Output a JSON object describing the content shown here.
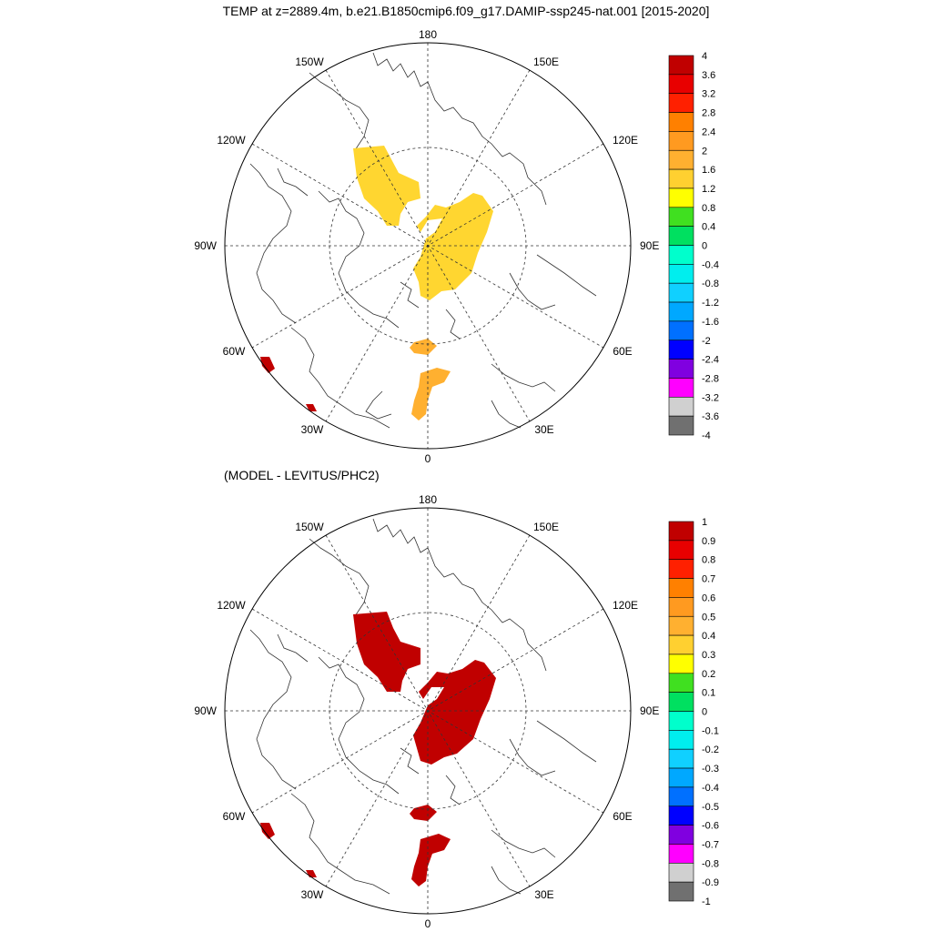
{
  "title": "TEMP at z=2889.4m, b.e21.B1850cmip6.f09_g17.DAMIP-ssp245-nat.001 [2015-2020]",
  "subtitle": "(MODEL - LEVITUS/PHC2)",
  "longitude_labels": {
    "top": "180",
    "bottom": "0",
    "left": "90W",
    "right": "90E",
    "lon150w": "150W",
    "lon150e": "150E",
    "lon120w": "120W",
    "lon120e": "120E",
    "lon60w": "60W",
    "lon60e": "60E",
    "lon30w": "30W",
    "lon30e": "30E"
  },
  "map_top": {
    "colorbar_labels": [
      "4",
      "3.6",
      "3.2",
      "2.8",
      "2.4",
      "2",
      "1.6",
      "1.2",
      "0.8",
      "0.4",
      "0",
      "-0.4",
      "-0.8",
      "-1.2",
      "-1.6",
      "-2",
      "-2.4",
      "-2.8",
      "-3.2",
      "-3.6",
      "-4"
    ]
  },
  "map_bottom": {
    "colorbar_labels": [
      "1",
      "0.9",
      "0.8",
      "0.7",
      "0.6",
      "0.5",
      "0.4",
      "0.3",
      "0.2",
      "0.1",
      "0",
      "-0.1",
      "-0.2",
      "-0.3",
      "-0.4",
      "-0.5",
      "-0.6",
      "-0.7",
      "-0.8",
      "-0.9",
      "-1"
    ]
  },
  "colorbar_colors": [
    "#c00000",
    "#e80000",
    "#ff2000",
    "#ff8000",
    "#ff9a20",
    "#ffb030",
    "#ffd030",
    "#ffff00",
    "#40e020",
    "#00e060",
    "#00ffcc",
    "#00eeee",
    "#10d0ff",
    "#00a8ff",
    "#0070ff",
    "#0000ff",
    "#8000e0",
    "#ff00ff",
    "#d0d0d0",
    "#707070"
  ],
  "fill_colors": {
    "top_yellow": "#ffd630",
    "top_orange": "#ffb030",
    "top_dark_red": "#c00000",
    "bottom_red": "#c00000"
  }
}
